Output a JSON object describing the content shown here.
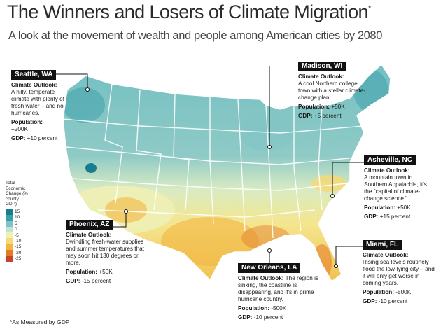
{
  "header": {
    "title": "The Winners and Losers of Climate Migration",
    "title_mark": "*",
    "subtitle": "A look at the movement of wealth and people among American cities by 2080"
  },
  "legend": {
    "title": "Total Economic Change (% county GDP)",
    "entries": [
      {
        "label": "15",
        "color": "#197d8e"
      },
      {
        "label": "10",
        "color": "#3a9eaa"
      },
      {
        "label": "5",
        "color": "#7fc3c5"
      },
      {
        "label": "0",
        "color": "#c3e2d3"
      },
      {
        "label": "-5",
        "color": "#eef0b5"
      },
      {
        "label": "-10",
        "color": "#f8d974"
      },
      {
        "label": "-15",
        "color": "#f2b640"
      },
      {
        "label": "-20",
        "color": "#e37a2a"
      },
      {
        "label": "-25",
        "color": "#c9452a"
      }
    ]
  },
  "callouts": {
    "seattle": {
      "city": "Seattle, WA",
      "outlook_label": "Climate Outlook:",
      "outlook": "A hilly, temperate climate with plenty of fresh water – and no hurricanes.",
      "population_label": "Population:",
      "population": "+200K",
      "gdp_label": "GDP:",
      "gdp": "+10 percent"
    },
    "madison": {
      "city": "Madison, WI",
      "outlook_label": "Climate Outlook:",
      "outlook": "A cool Northern college town with a stellar climate-change plan.",
      "population_label": "Population:",
      "population": "+50K",
      "gdp_label": "GDP:",
      "gdp": "+5 percent"
    },
    "asheville": {
      "city": "Asheville, NC",
      "outlook_label": "Climate Outlook:",
      "outlook": "A mountain town in Southern Appalachia, it's the \"capital of climate-change science.\"",
      "population_label": "Population:",
      "population": "+50K",
      "gdp_label": "GDP:",
      "gdp": "+15 percent"
    },
    "phoenix": {
      "city": "Phoenix, AZ",
      "outlook_label": "Climate Outlook:",
      "outlook": "Dwindling fresh-water supplies and summer temperatures that may soon hit 130 degrees or more.",
      "population_label": "Population:",
      "population": "+50K",
      "gdp_label": "GDP:",
      "gdp": "-15 percent"
    },
    "new_orleans": {
      "city": "New Orleans, LA",
      "outlook_label": "Climate Outlook:",
      "outlook": "The region is sinking, the coastline is disappearing, and it's in prime hurricane country.",
      "population_label": "Population:",
      "population": "-500K",
      "gdp_label": "GDP:",
      "gdp": "-10 percent"
    },
    "miami": {
      "city": "Miami, FL",
      "outlook_label": "Climate Outlook:",
      "outlook": "Rising sea levels routinely flood the low-lying city – and it will only get worse in coming years.",
      "population_label": "Population:",
      "population": "-500K",
      "gdp_label": "GDP:",
      "gdp": "-10 percent"
    }
  },
  "footnote": "*As Measured by GDP"
}
